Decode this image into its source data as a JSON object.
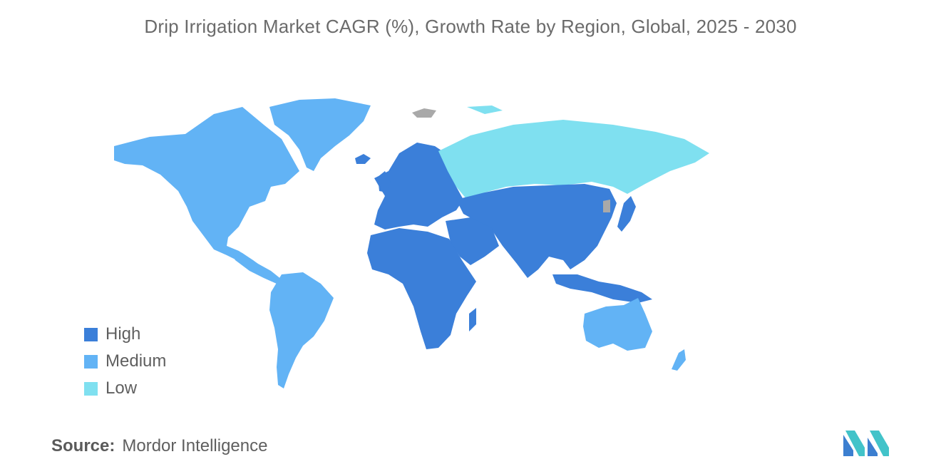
{
  "title": "Drip Irrigation Market CAGR (%), Growth Rate by Region, Global, 2025 - 2030",
  "legend": [
    {
      "label": "High",
      "color": "#3b7fd9"
    },
    {
      "label": "Medium",
      "color": "#62b3f5"
    },
    {
      "label": "Low",
      "color": "#7fe0f0"
    }
  ],
  "no_data_color": "#a9a9a9",
  "source": {
    "label": "Source:",
    "value": "Mordor Intelligence"
  },
  "regions": {
    "north_america": "Medium",
    "south_america": "Medium",
    "europe": "High",
    "russia": "Low",
    "africa": "High",
    "middle_east": "High",
    "asia": "High",
    "australia": "Medium",
    "new_zealand": "Medium"
  },
  "logo": "mordor-intelligence-logo"
}
